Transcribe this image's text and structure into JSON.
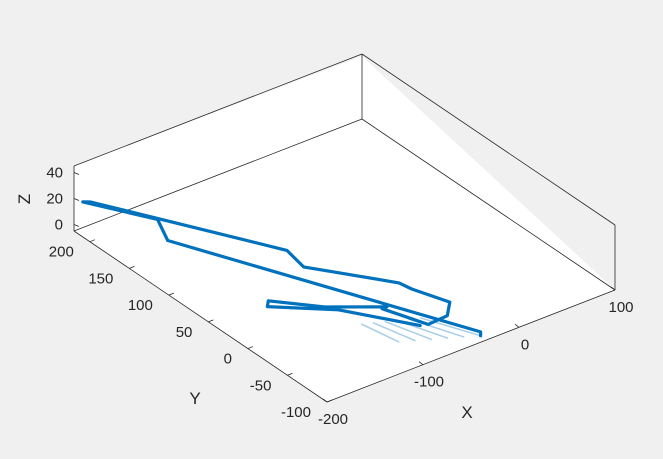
{
  "chart_data": {
    "type": "line3d",
    "title": "",
    "xlabel": "X",
    "ylabel": "Y",
    "zlabel": "Z",
    "xlim": [
      -200,
      100
    ],
    "ylim": [
      -100,
      220
    ],
    "zlim": [
      -5,
      45
    ],
    "xticks": [
      -200,
      -100,
      0,
      100
    ],
    "yticks": [
      -100,
      -50,
      0,
      50,
      100,
      150,
      200
    ],
    "zticks": [
      0,
      20,
      40
    ],
    "xtick_labels": [
      "-200",
      "-100",
      "0",
      "100"
    ],
    "ytick_labels": [
      "-100",
      "-50",
      "0",
      "50",
      "100",
      "150",
      "200"
    ],
    "ztick_labels": [
      "0",
      "20",
      "40"
    ],
    "grid": false,
    "view": "3d-perspective",
    "series": [
      {
        "color": "#0072bd",
        "x": [
          -40,
          -40,
          -160,
          -150,
          -195,
          -195,
          -110,
          -105,
          -55,
          -50,
          -35,
          -50,
          -70,
          -85,
          -80,
          -120,
          -150,
          -155,
          -110,
          -70
        ],
        "y": [
          -100,
          -100,
          150,
          175,
          215,
          205,
          60,
          45,
          -15,
          -25,
          -55,
          -70,
          -70,
          -30,
          -30,
          0,
          35,
          30,
          -5,
          -60
        ],
        "z": [
          0,
          3,
          5,
          8,
          18,
          22,
          20,
          12,
          10,
          8,
          6,
          6,
          5,
          5,
          5,
          4,
          3,
          2,
          1,
          0
        ]
      }
    ]
  }
}
